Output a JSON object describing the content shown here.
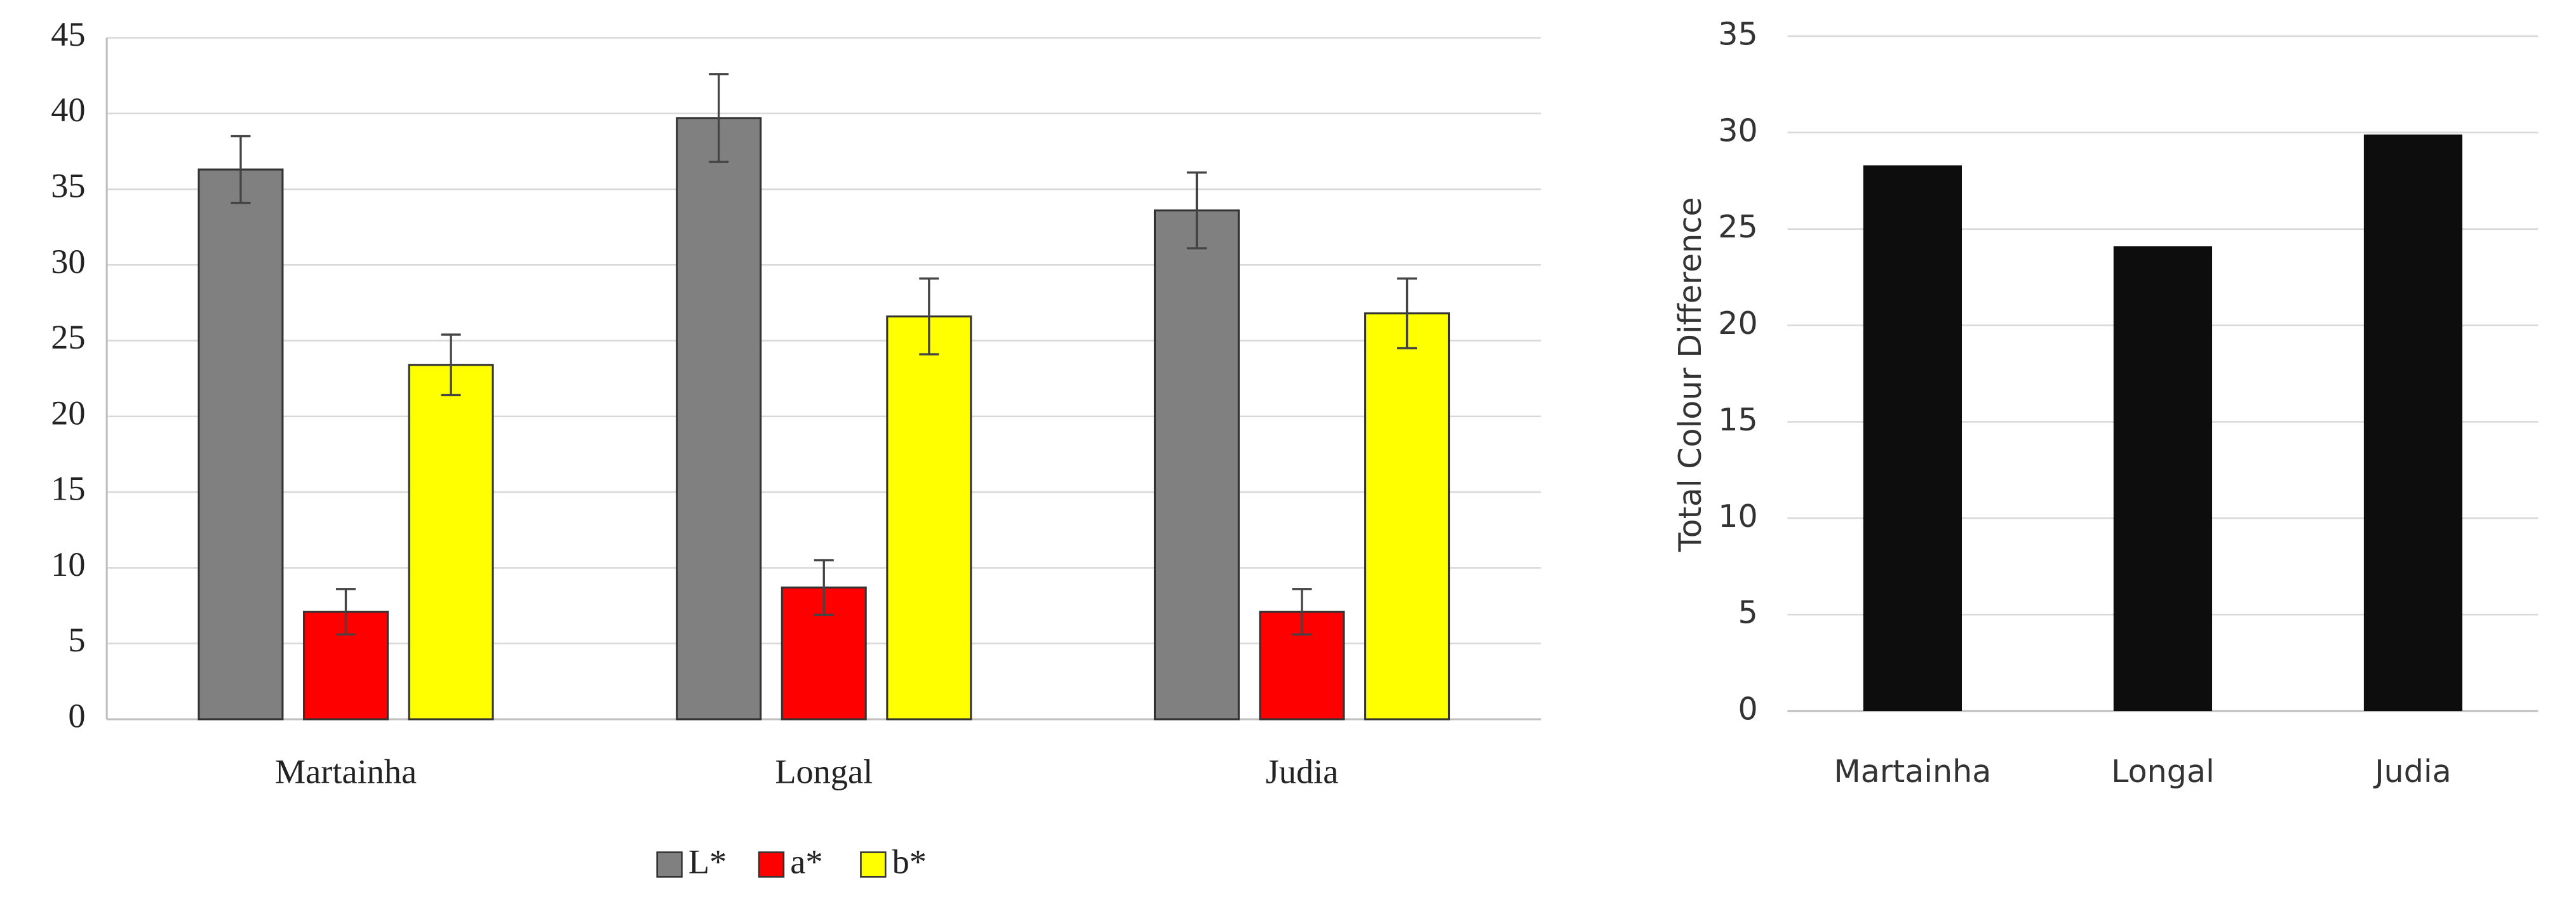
{
  "chart_data": [
    {
      "type": "bar",
      "categories": [
        "Martainha",
        "Longal",
        "Judia"
      ],
      "series": [
        {
          "name": "L*",
          "color": "#808080",
          "values": [
            36.3,
            39.7,
            33.6
          ],
          "errors": [
            2.2,
            2.9,
            2.5
          ]
        },
        {
          "name": "a*",
          "color": "#ff0000",
          "values": [
            7.1,
            8.7,
            7.1
          ],
          "errors": [
            1.5,
            1.8,
            1.5
          ]
        },
        {
          "name": "b*",
          "color": "#ffff00",
          "values": [
            23.4,
            26.6,
            26.8
          ],
          "errors": [
            2.0,
            2.5,
            2.3
          ]
        }
      ],
      "ylim": [
        0,
        45
      ],
      "yticks": [
        0,
        5,
        10,
        15,
        20,
        25,
        30,
        35,
        40,
        45
      ],
      "grid": true,
      "legend": "bottom"
    },
    {
      "type": "bar",
      "ylabel": "Total Colour Difference",
      "categories": [
        "Martainha",
        "Longal",
        "Judia"
      ],
      "values": [
        28.3,
        24.1,
        29.9
      ],
      "color": "#0d0d0d",
      "ylim": [
        0,
        35
      ],
      "yticks": [
        0,
        5,
        10,
        15,
        20,
        25,
        30,
        35
      ],
      "grid": true
    }
  ]
}
